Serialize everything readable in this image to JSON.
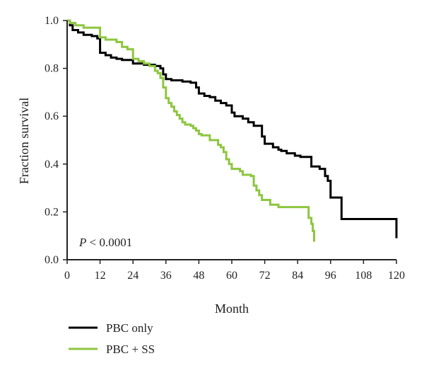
{
  "chart_data": {
    "type": "line",
    "title": "",
    "xlabel": "Month",
    "ylabel": "Fraction survival",
    "xlim": [
      0,
      120
    ],
    "ylim": [
      0,
      1.0
    ],
    "x_ticks": [
      0,
      12,
      24,
      36,
      48,
      60,
      72,
      84,
      96,
      108,
      120
    ],
    "y_ticks": [
      0.0,
      0.2,
      0.4,
      0.6,
      0.8,
      1.0
    ],
    "x_tick_labels": [
      "0",
      "12",
      "24",
      "36",
      "48",
      "60",
      "72",
      "84",
      "96",
      "108",
      "120"
    ],
    "y_tick_labels": [
      "0.0",
      "0.2",
      "0.4",
      "0.6",
      "0.8",
      "1.0"
    ],
    "annotation": "P < 0.0001",
    "annotation_italic": "P",
    "annotation_rest": " < 0.0001",
    "grid": false,
    "legend_position": "bottom-left",
    "series": [
      {
        "name": "PBC only",
        "color": "#000000",
        "step": true,
        "points": [
          [
            0,
            1.0
          ],
          [
            1,
            0.98
          ],
          [
            2,
            0.96
          ],
          [
            4,
            0.95
          ],
          [
            6,
            0.94
          ],
          [
            9,
            0.935
          ],
          [
            11,
            0.925
          ],
          [
            12,
            0.865
          ],
          [
            14,
            0.855
          ],
          [
            16,
            0.845
          ],
          [
            18,
            0.84
          ],
          [
            20,
            0.835
          ],
          [
            24,
            0.82
          ],
          [
            28,
            0.815
          ],
          [
            32,
            0.81
          ],
          [
            34,
            0.8
          ],
          [
            35,
            0.775
          ],
          [
            36,
            0.755
          ],
          [
            38,
            0.75
          ],
          [
            42,
            0.745
          ],
          [
            45,
            0.74
          ],
          [
            47,
            0.72
          ],
          [
            48,
            0.695
          ],
          [
            50,
            0.685
          ],
          [
            52,
            0.68
          ],
          [
            54,
            0.665
          ],
          [
            56,
            0.655
          ],
          [
            58,
            0.645
          ],
          [
            60,
            0.615
          ],
          [
            61,
            0.6
          ],
          [
            64,
            0.59
          ],
          [
            66,
            0.575
          ],
          [
            68,
            0.56
          ],
          [
            71,
            0.515
          ],
          [
            72,
            0.485
          ],
          [
            75,
            0.47
          ],
          [
            77,
            0.46
          ],
          [
            78,
            0.455
          ],
          [
            80,
            0.445
          ],
          [
            83,
            0.435
          ],
          [
            85,
            0.43
          ],
          [
            89,
            0.39
          ],
          [
            92,
            0.38
          ],
          [
            94,
            0.35
          ],
          [
            95,
            0.33
          ],
          [
            96,
            0.26
          ],
          [
            100,
            0.17
          ],
          [
            120,
            0.17
          ],
          [
            120,
            0.09
          ]
        ]
      },
      {
        "name": "PBC + SS",
        "color": "#8dc63f",
        "step": true,
        "points": [
          [
            0,
            1.0
          ],
          [
            1,
            0.99
          ],
          [
            3,
            0.98
          ],
          [
            6,
            0.97
          ],
          [
            12,
            0.93
          ],
          [
            14,
            0.92
          ],
          [
            18,
            0.91
          ],
          [
            20,
            0.89
          ],
          [
            22,
            0.88
          ],
          [
            24,
            0.84
          ],
          [
            26,
            0.83
          ],
          [
            28,
            0.82
          ],
          [
            30,
            0.81
          ],
          [
            32,
            0.79
          ],
          [
            33,
            0.78
          ],
          [
            34,
            0.76
          ],
          [
            35,
            0.72
          ],
          [
            36,
            0.675
          ],
          [
            37,
            0.655
          ],
          [
            38,
            0.64
          ],
          [
            39,
            0.62
          ],
          [
            40,
            0.605
          ],
          [
            41,
            0.59
          ],
          [
            42,
            0.575
          ],
          [
            43,
            0.565
          ],
          [
            45,
            0.56
          ],
          [
            46,
            0.55
          ],
          [
            47,
            0.54
          ],
          [
            48,
            0.525
          ],
          [
            49,
            0.52
          ],
          [
            52,
            0.5
          ],
          [
            55,
            0.48
          ],
          [
            56,
            0.47
          ],
          [
            57,
            0.45
          ],
          [
            58,
            0.42
          ],
          [
            59,
            0.4
          ],
          [
            60,
            0.38
          ],
          [
            63,
            0.37
          ],
          [
            64,
            0.355
          ],
          [
            67,
            0.35
          ],
          [
            68,
            0.31
          ],
          [
            69,
            0.29
          ],
          [
            70,
            0.27
          ],
          [
            71,
            0.25
          ],
          [
            72,
            0.25
          ],
          [
            74,
            0.23
          ],
          [
            77,
            0.22
          ],
          [
            88,
            0.22
          ],
          [
            88,
            0.175
          ],
          [
            89,
            0.15
          ],
          [
            89.5,
            0.12
          ],
          [
            90,
            0.075
          ]
        ]
      }
    ]
  }
}
